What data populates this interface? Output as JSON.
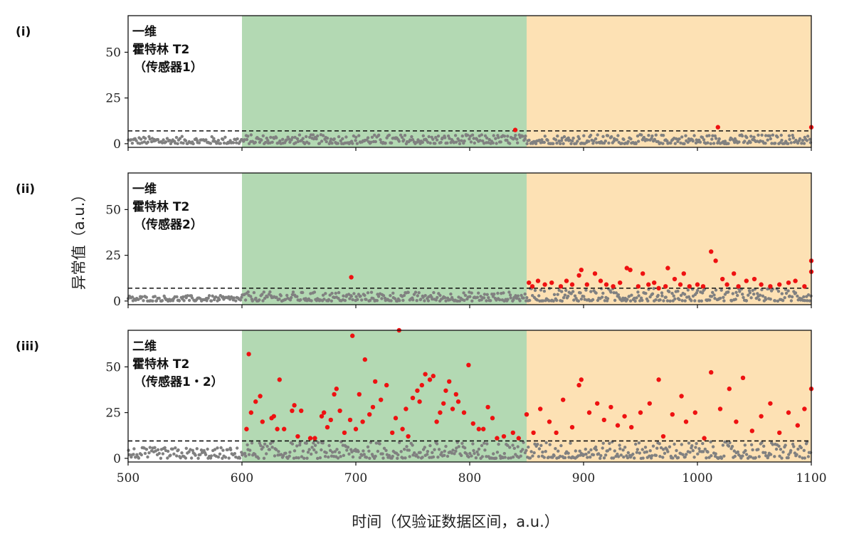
{
  "chart_data": {
    "type": "scatter",
    "xlabel": "时间（仅验证数据区间，a.u.）",
    "ylabel": "异常值（a.u.）",
    "xlim": [
      500,
      1100
    ],
    "ylim": [
      -2,
      70
    ],
    "x_ticks": [
      500,
      600,
      700,
      800,
      900,
      1000,
      1100
    ],
    "y_ticks": [
      0,
      25,
      50
    ],
    "regions": [
      {
        "x_start": 600,
        "x_end": 850,
        "color": "#b3d9b3"
      },
      {
        "x_start": 850,
        "x_end": 1100,
        "color": "#fde1b4"
      }
    ],
    "normal_color": "#808080",
    "anomaly_color": "#ee1111",
    "panels": [
      {
        "label": "(i)",
        "annotation": [
          "一维",
          "霍特林 T2",
          "（传感器1）"
        ],
        "threshold": 7,
        "anomalies": [
          [
            840,
            7.5
          ],
          [
            1018,
            9
          ],
          [
            1100,
            9
          ]
        ],
        "normal_ranges": [
          {
            "x_start": 500,
            "x_end": 600,
            "max": 4
          },
          {
            "x_start": 600,
            "x_end": 850,
            "max": 5
          },
          {
            "x_start": 850,
            "x_end": 1100,
            "max": 5
          }
        ]
      },
      {
        "label": "(ii)",
        "annotation": [
          "一维",
          "霍特林 T2",
          "（传感器2）"
        ],
        "threshold": 7,
        "anomalies": [
          [
            696,
            13
          ],
          [
            852,
            10
          ],
          [
            855,
            8
          ],
          [
            860,
            11
          ],
          [
            866,
            9
          ],
          [
            872,
            10
          ],
          [
            880,
            8
          ],
          [
            885,
            11
          ],
          [
            890,
            9
          ],
          [
            896,
            14
          ],
          [
            898,
            17
          ],
          [
            903,
            9
          ],
          [
            910,
            15
          ],
          [
            915,
            11
          ],
          [
            920,
            9
          ],
          [
            926,
            8
          ],
          [
            932,
            10
          ],
          [
            938,
            18
          ],
          [
            941,
            17
          ],
          [
            948,
            8
          ],
          [
            952,
            15
          ],
          [
            957,
            9
          ],
          [
            962,
            10
          ],
          [
            966,
            7
          ],
          [
            972,
            8
          ],
          [
            974,
            18
          ],
          [
            980,
            12
          ],
          [
            985,
            9
          ],
          [
            988,
            15
          ],
          [
            993,
            8
          ],
          [
            1000,
            9
          ],
          [
            1005,
            8
          ],
          [
            1012,
            27
          ],
          [
            1016,
            22
          ],
          [
            1022,
            12
          ],
          [
            1026,
            9
          ],
          [
            1032,
            15
          ],
          [
            1036,
            8
          ],
          [
            1043,
            11
          ],
          [
            1050,
            12
          ],
          [
            1056,
            9
          ],
          [
            1064,
            8
          ],
          [
            1072,
            9
          ],
          [
            1080,
            10
          ],
          [
            1086,
            11
          ],
          [
            1094,
            8
          ],
          [
            1100,
            16
          ],
          [
            1100,
            22
          ]
        ],
        "normal_ranges": [
          {
            "x_start": 500,
            "x_end": 600,
            "max": 3
          },
          {
            "x_start": 600,
            "x_end": 850,
            "max": 5
          },
          {
            "x_start": 850,
            "x_end": 1100,
            "max": 7
          }
        ]
      },
      {
        "label": "(iii)",
        "annotation": [
          "二维",
          "霍特林 T2",
          "（传感器1・2）"
        ],
        "threshold": 9.5,
        "anomalies": [
          [
            604,
            16
          ],
          [
            606,
            57
          ],
          [
            608,
            25
          ],
          [
            612,
            31
          ],
          [
            616,
            34
          ],
          [
            618,
            20
          ],
          [
            626,
            22
          ],
          [
            628,
            23
          ],
          [
            631,
            16
          ],
          [
            633,
            43
          ],
          [
            637,
            16
          ],
          [
            644,
            26
          ],
          [
            646,
            29
          ],
          [
            649,
            12
          ],
          [
            652,
            26
          ],
          [
            660,
            11
          ],
          [
            664,
            11
          ],
          [
            670,
            23
          ],
          [
            672,
            25
          ],
          [
            675,
            17
          ],
          [
            678,
            21
          ],
          [
            681,
            35
          ],
          [
            683,
            38
          ],
          [
            686,
            26
          ],
          [
            690,
            14
          ],
          [
            695,
            21
          ],
          [
            697,
            67
          ],
          [
            700,
            16
          ],
          [
            703,
            35
          ],
          [
            706,
            20
          ],
          [
            708,
            54
          ],
          [
            712,
            24
          ],
          [
            715,
            28
          ],
          [
            717,
            42
          ],
          [
            722,
            32
          ],
          [
            727,
            40
          ],
          [
            732,
            14
          ],
          [
            735,
            22
          ],
          [
            738,
            70
          ],
          [
            741,
            16
          ],
          [
            744,
            27
          ],
          [
            746,
            12
          ],
          [
            750,
            33
          ],
          [
            754,
            37
          ],
          [
            756,
            31
          ],
          [
            758,
            40
          ],
          [
            761,
            46
          ],
          [
            765,
            43
          ],
          [
            768,
            45
          ],
          [
            771,
            20
          ],
          [
            774,
            25
          ],
          [
            777,
            30
          ],
          [
            779,
            37
          ],
          [
            782,
            42
          ],
          [
            785,
            27
          ],
          [
            788,
            35
          ],
          [
            790,
            31
          ],
          [
            795,
            25
          ],
          [
            799,
            51
          ],
          [
            803,
            19
          ],
          [
            808,
            16
          ],
          [
            812,
            16
          ],
          [
            816,
            28
          ],
          [
            820,
            22
          ],
          [
            824,
            11
          ],
          [
            830,
            12
          ],
          [
            838,
            14
          ],
          [
            843,
            11
          ],
          [
            850,
            24
          ],
          [
            856,
            14
          ],
          [
            862,
            27
          ],
          [
            870,
            20
          ],
          [
            876,
            14
          ],
          [
            882,
            32
          ],
          [
            890,
            17
          ],
          [
            896,
            40
          ],
          [
            898,
            43
          ],
          [
            905,
            25
          ],
          [
            912,
            30
          ],
          [
            918,
            21
          ],
          [
            924,
            28
          ],
          [
            930,
            18
          ],
          [
            936,
            23
          ],
          [
            942,
            17
          ],
          [
            950,
            25
          ],
          [
            958,
            30
          ],
          [
            966,
            43
          ],
          [
            970,
            12
          ],
          [
            978,
            24
          ],
          [
            986,
            34
          ],
          [
            990,
            20
          ],
          [
            998,
            25
          ],
          [
            1006,
            11
          ],
          [
            1012,
            47
          ],
          [
            1020,
            27
          ],
          [
            1028,
            38
          ],
          [
            1034,
            20
          ],
          [
            1040,
            44
          ],
          [
            1048,
            15
          ],
          [
            1056,
            23
          ],
          [
            1064,
            30
          ],
          [
            1072,
            14
          ],
          [
            1080,
            25
          ],
          [
            1088,
            18
          ],
          [
            1094,
            27
          ],
          [
            1100,
            38
          ]
        ],
        "normal_ranges": [
          {
            "x_start": 500,
            "x_end": 600,
            "max": 6
          },
          {
            "x_start": 600,
            "x_end": 850,
            "max": 9
          },
          {
            "x_start": 850,
            "x_end": 1100,
            "max": 9
          }
        ]
      }
    ]
  }
}
